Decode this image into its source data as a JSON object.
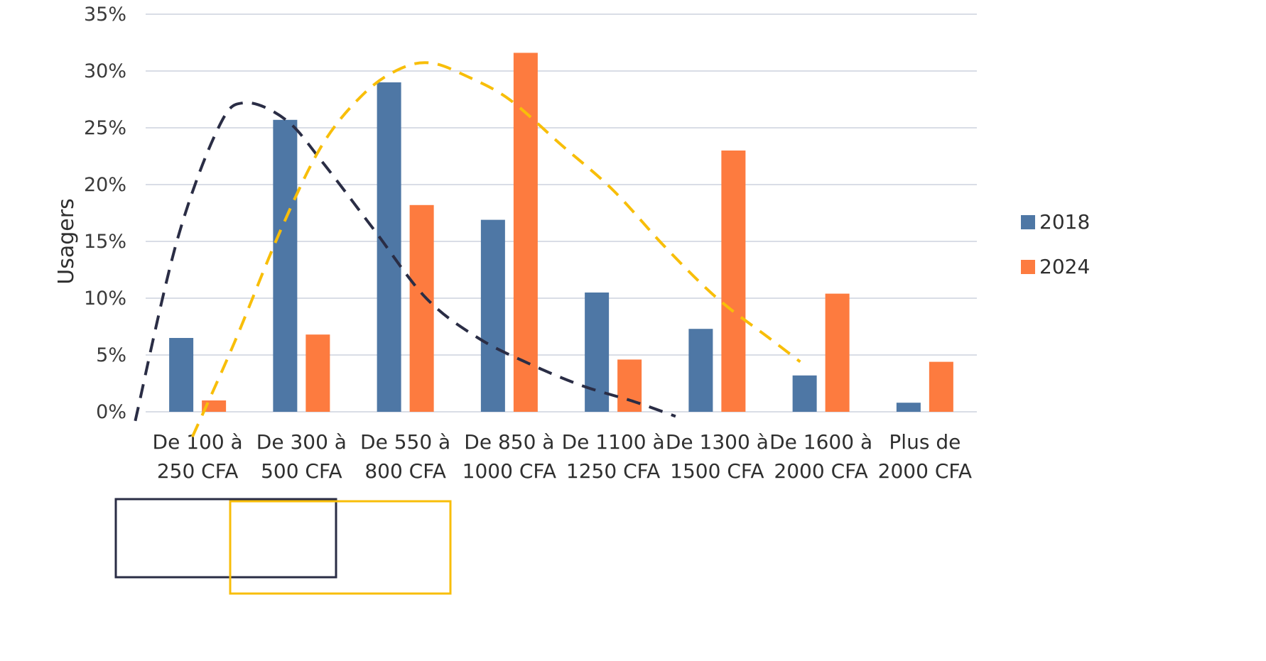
{
  "chart_data": {
    "type": "bar",
    "title": "",
    "xlabel": "",
    "ylabel": "Usagers",
    "ylim": [
      0,
      35
    ],
    "yticks": [
      "0%",
      "5%",
      "10%",
      "15%",
      "20%",
      "25%",
      "30%",
      "35%"
    ],
    "categories": [
      [
        "De 100 à",
        "250 CFA"
      ],
      [
        "De 300 à",
        "500 CFA"
      ],
      [
        "De 550 à",
        "800 CFA"
      ],
      [
        "De 850 à",
        "1000 CFA"
      ],
      [
        "De 1100 à",
        "1250 CFA"
      ],
      [
        "De 1300 à",
        "1500 CFA"
      ],
      [
        "De 1600 à",
        "2000 CFA"
      ],
      [
        "Plus de",
        "2000 CFA"
      ]
    ],
    "series": [
      {
        "name": "2018",
        "color": "#4e77a5",
        "values": [
          6.5,
          25.7,
          29.0,
          16.9,
          10.5,
          7.3,
          3.2,
          0.8
        ]
      },
      {
        "name": "2024",
        "color": "#fd7b3f",
        "values": [
          1.0,
          6.8,
          18.2,
          31.6,
          4.6,
          23.0,
          10.4,
          4.4
        ]
      }
    ],
    "grid": true,
    "legend_position": "right",
    "annotations": [
      {
        "type": "dashed-curve",
        "color": "#2a2d45",
        "points": [
          [
            -0.6,
            -0.8
          ],
          [
            -0.2,
            15
          ],
          [
            0.2,
            25
          ],
          [
            0.45,
            27.2
          ],
          [
            0.85,
            25.7
          ],
          [
            1.2,
            22
          ],
          [
            1.7,
            16
          ],
          [
            2.2,
            10
          ],
          [
            2.7,
            6.5
          ],
          [
            3.2,
            4.2
          ],
          [
            3.7,
            2.3
          ],
          [
            4.2,
            0.9
          ],
          [
            4.6,
            -0.4
          ]
        ]
      },
      {
        "type": "dashed-curve",
        "color": "#f8be09",
        "points": [
          [
            -0.05,
            -2.2
          ],
          [
            0.35,
            6
          ],
          [
            0.8,
            16
          ],
          [
            1.2,
            23.5
          ],
          [
            1.6,
            28
          ],
          [
            1.95,
            30.2
          ],
          [
            2.25,
            30.7
          ],
          [
            2.6,
            29.5
          ],
          [
            3.0,
            27.5
          ],
          [
            3.5,
            23.5
          ],
          [
            4.0,
            19.5
          ],
          [
            4.5,
            14.5
          ],
          [
            5.0,
            10
          ],
          [
            5.5,
            6.5
          ],
          [
            5.8,
            4.4
          ]
        ]
      }
    ],
    "boxes": [
      {
        "color": "#2a2d45"
      },
      {
        "color": "#f8be09"
      }
    ]
  }
}
